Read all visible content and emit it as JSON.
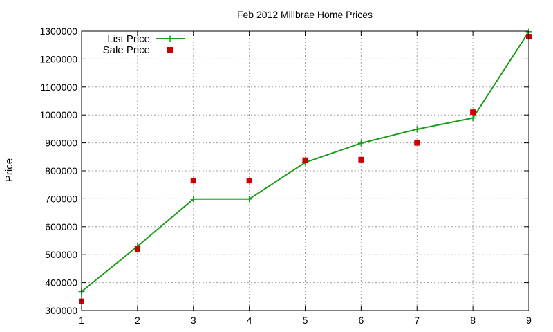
{
  "chart_data": {
    "type": "line",
    "title": "Feb 2012 Millbrae Home Prices",
    "xlabel": "",
    "ylabel": "Price",
    "xlim": [
      1,
      9
    ],
    "ylim": [
      300000,
      1300000
    ],
    "x_ticks": [
      1,
      2,
      3,
      4,
      5,
      6,
      7,
      8,
      9
    ],
    "y_ticks": [
      300000,
      400000,
      500000,
      600000,
      700000,
      800000,
      900000,
      1000000,
      1100000,
      1200000,
      1300000
    ],
    "grid": true,
    "legend_position": "top-left",
    "series": [
      {
        "name": "List Price",
        "style": "line-with-plus-markers",
        "color": "#1a9c1a",
        "x": [
          1,
          2,
          3,
          4,
          5,
          6,
          7,
          8,
          9
        ],
        "y": [
          368000,
          530000,
          699000,
          699000,
          830000,
          899000,
          949000,
          989000,
          1298000
        ]
      },
      {
        "name": "Sale Price",
        "style": "square-markers",
        "color": "#cc0000",
        "x": [
          1,
          2,
          3,
          4,
          5,
          6,
          7,
          8,
          9
        ],
        "y": [
          333000,
          520000,
          765000,
          765000,
          838000,
          840000,
          900000,
          1010000,
          1280000
        ]
      }
    ]
  }
}
